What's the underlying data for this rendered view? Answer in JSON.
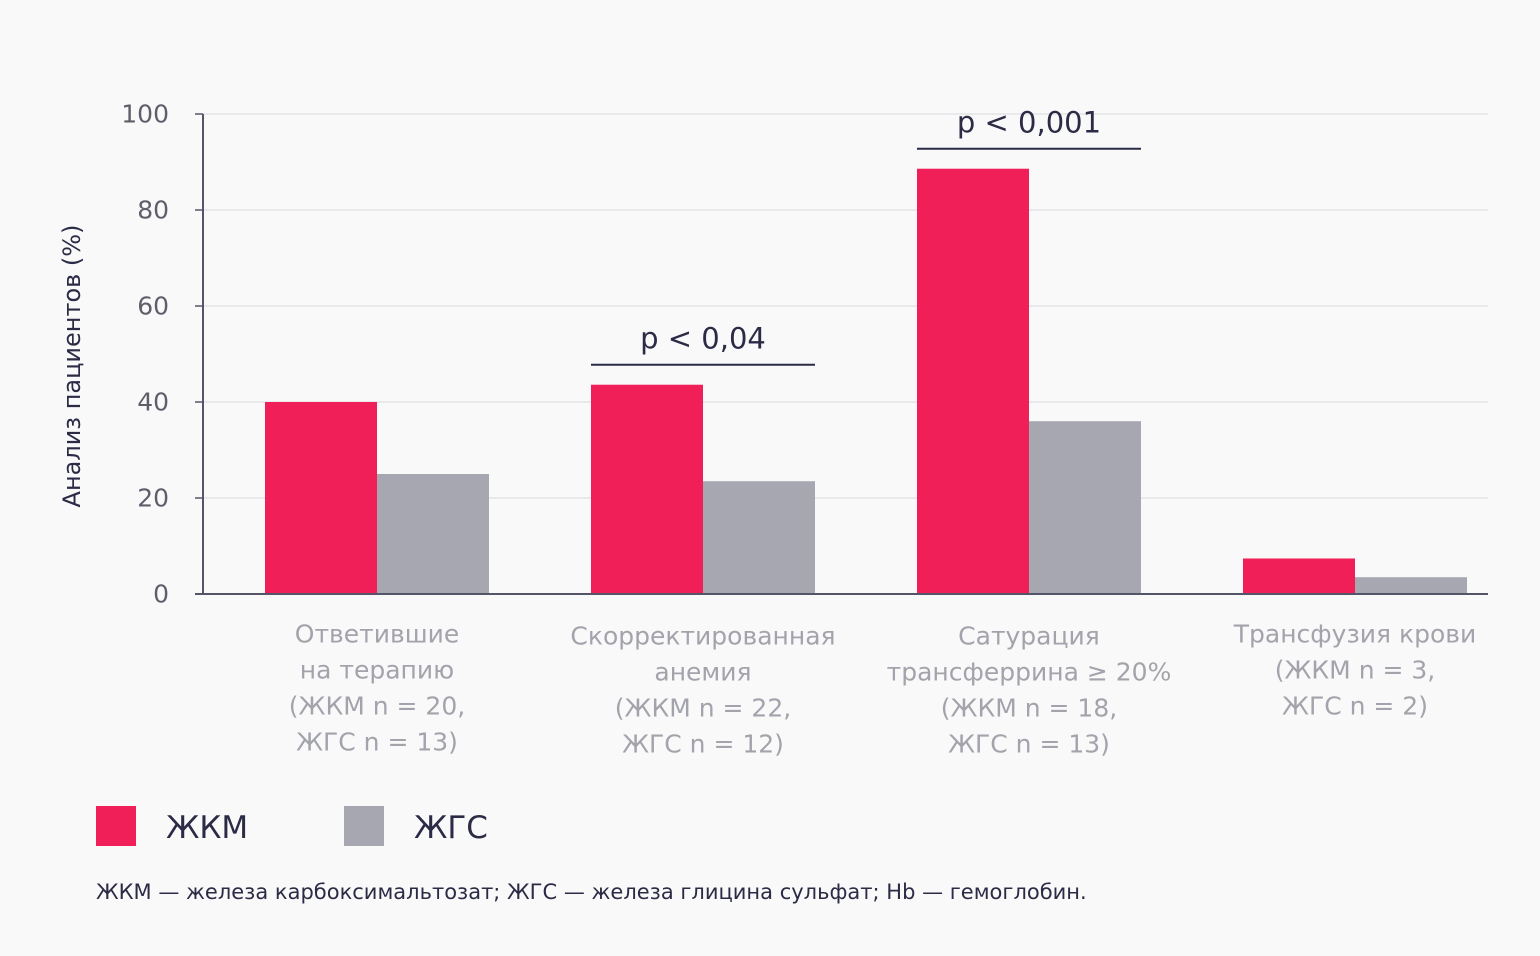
{
  "chart_data": {
    "type": "bar",
    "title": "",
    "xlabel": "",
    "ylabel": "Анализ пациентов (%)",
    "ylim": [
      0,
      100
    ],
    "yticks": [
      0,
      20,
      40,
      60,
      80,
      100
    ],
    "grid": true,
    "categories": [
      [
        "Ответившие",
        "на терапию",
        "(ЖКМ n = 20,",
        "ЖГС n = 13)"
      ],
      [
        "Скорректированная",
        "анемия",
        "(ЖКМ n = 22,",
        "ЖГС n = 12)"
      ],
      [
        "Сатурация",
        "трансферрина ≥ 20%",
        "(ЖКМ n = 18,",
        "ЖГС n = 13)"
      ],
      [
        "Трансфузия крови",
        "(ЖКМ n = 3,",
        "ЖГС n = 2)"
      ]
    ],
    "series": [
      {
        "name": "ЖКМ",
        "color": "#f01f57",
        "values": [
          40,
          43.6,
          88.6,
          7.4
        ]
      },
      {
        "name": "ЖГС",
        "color": "#a7a7b1",
        "values": [
          25,
          23.5,
          36,
          3.5
        ]
      }
    ],
    "annotations": [
      {
        "category_index": 1,
        "text": "p  <  0,04"
      },
      {
        "category_index": 2,
        "text": "p  <  0,001"
      }
    ],
    "legend_position": "bottom-left"
  },
  "footnote": "ЖКМ — железа карбоксимальтозат; ЖГС — железа глицина сульфат; Hb — гемоглобин."
}
